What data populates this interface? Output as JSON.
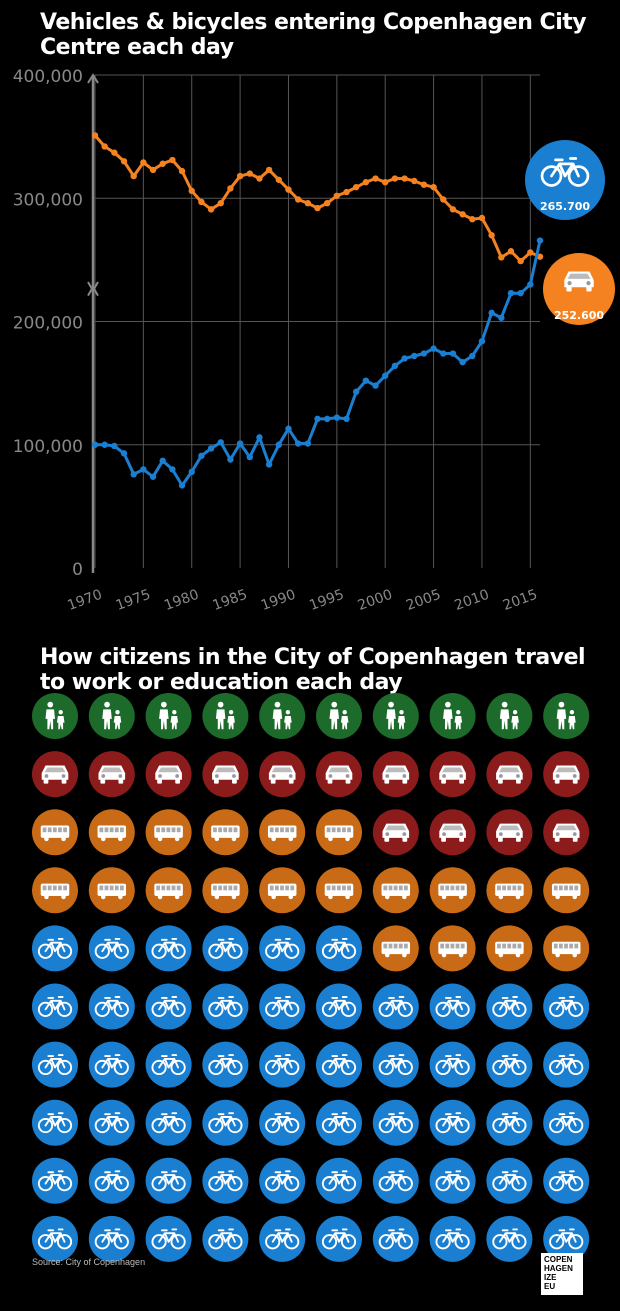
{
  "chart_data": [
    {
      "type": "line",
      "title": "Vehicles & bicycles entering Copenhagen City Centre each day",
      "xlabel": "",
      "ylabel": "",
      "xlim": [
        1970,
        2016
      ],
      "ylim": [
        0,
        400000
      ],
      "x_ticks": [
        "1970",
        "1975",
        "1980",
        "1985",
        "1990",
        "1995",
        "2000",
        "2005",
        "2010",
        "2015"
      ],
      "y_ticks": [
        "0",
        "100,000",
        "200,000",
        "300,000",
        "400,000"
      ],
      "grid": true,
      "colors": {
        "cars": "#f58220",
        "bicycles": "#1a7fd1",
        "axis": "#888888",
        "grid": "#555555"
      },
      "x": [
        1970,
        1971,
        1972,
        1973,
        1974,
        1975,
        1976,
        1977,
        1978,
        1979,
        1980,
        1981,
        1982,
        1983,
        1984,
        1985,
        1986,
        1987,
        1988,
        1989,
        1990,
        1991,
        1992,
        1993,
        1994,
        1995,
        1996,
        1997,
        1998,
        1999,
        2000,
        2001,
        2002,
        2003,
        2004,
        2005,
        2006,
        2007,
        2008,
        2009,
        2010,
        2011,
        2012,
        2013,
        2014,
        2015,
        2016
      ],
      "series": [
        {
          "key": "cars",
          "values": [
            351000,
            342000,
            337000,
            330000,
            318000,
            329000,
            323000,
            328000,
            331000,
            322000,
            306000,
            297000,
            291000,
            296000,
            308000,
            318000,
            320000,
            316000,
            323000,
            315000,
            307000,
            299000,
            296000,
            292000,
            296000,
            302000,
            305000,
            309000,
            313000,
            316000,
            313000,
            316000,
            316000,
            314000,
            311000,
            309000,
            299000,
            291000,
            287000,
            283000,
            284000,
            270000,
            252000,
            257000,
            249000,
            256000,
            252600
          ]
        },
        {
          "key": "bicycles",
          "values": [
            100000,
            100000,
            99000,
            93000,
            76000,
            80000,
            74000,
            87000,
            80000,
            67000,
            78000,
            91000,
            97000,
            102000,
            88000,
            101000,
            90000,
            106000,
            84000,
            100000,
            113000,
            101000,
            101000,
            121000,
            121000,
            122000,
            121000,
            143000,
            152000,
            148000,
            156000,
            164000,
            170000,
            172000,
            174000,
            178000,
            174000,
            174000,
            167000,
            172000,
            184000,
            207000,
            203000,
            223000,
            223000,
            230000,
            265700
          ]
        }
      ],
      "callouts": [
        {
          "key": "bicycles",
          "icon": "bicycle-icon",
          "value": "265.700",
          "color": "#1a7fd1"
        },
        {
          "key": "cars",
          "icon": "car-icon",
          "value": "252.600",
          "color": "#f58220"
        }
      ]
    },
    {
      "type": "pictogram",
      "title": "How citizens in the City of Copenhagen travel to work or education each day",
      "columns": 10,
      "categories": [
        {
          "key": "walk",
          "icon": "pedestrian-icon",
          "color": "#1d6b2a",
          "count": 10
        },
        {
          "key": "car",
          "icon": "car-icon",
          "color": "#8c1c1c",
          "count": 14
        },
        {
          "key": "bus",
          "icon": "bus-icon",
          "color": "#c86a16",
          "count": 20
        },
        {
          "key": "bike",
          "icon": "bicycle-icon",
          "color": "#1a7fd1",
          "count": 56
        }
      ],
      "grid": [
        [
          "walk",
          "walk",
          "walk",
          "walk",
          "walk",
          "walk",
          "walk",
          "walk",
          "walk",
          "walk"
        ],
        [
          "car",
          "car",
          "car",
          "car",
          "car",
          "car",
          "car",
          "car",
          "car",
          "car"
        ],
        [
          "bus",
          "bus",
          "bus",
          "bus",
          "bus",
          "bus",
          "car",
          "car",
          "car",
          "car"
        ],
        [
          "bus",
          "bus",
          "bus",
          "bus",
          "bus",
          "bus",
          "bus",
          "bus",
          "bus",
          "bus"
        ],
        [
          "bike",
          "bike",
          "bike",
          "bike",
          "bike",
          "bike",
          "bus",
          "bus",
          "bus",
          "bus"
        ],
        [
          "bike",
          "bike",
          "bike",
          "bike",
          "bike",
          "bike",
          "bike",
          "bike",
          "bike",
          "bike"
        ],
        [
          "bike",
          "bike",
          "bike",
          "bike",
          "bike",
          "bike",
          "bike",
          "bike",
          "bike",
          "bike"
        ],
        [
          "bike",
          "bike",
          "bike",
          "bike",
          "bike",
          "bike",
          "bike",
          "bike",
          "bike",
          "bike"
        ],
        [
          "bike",
          "bike",
          "bike",
          "bike",
          "bike",
          "bike",
          "bike",
          "bike",
          "bike",
          "bike"
        ],
        [
          "bike",
          "bike",
          "bike",
          "bike",
          "bike",
          "bike",
          "bike",
          "bike",
          "bike",
          "bike"
        ]
      ]
    }
  ],
  "source": "Source: City of Copenhagen",
  "logo_text": [
    "COPEN",
    "HAGEN",
    "IZE",
    "EU"
  ]
}
